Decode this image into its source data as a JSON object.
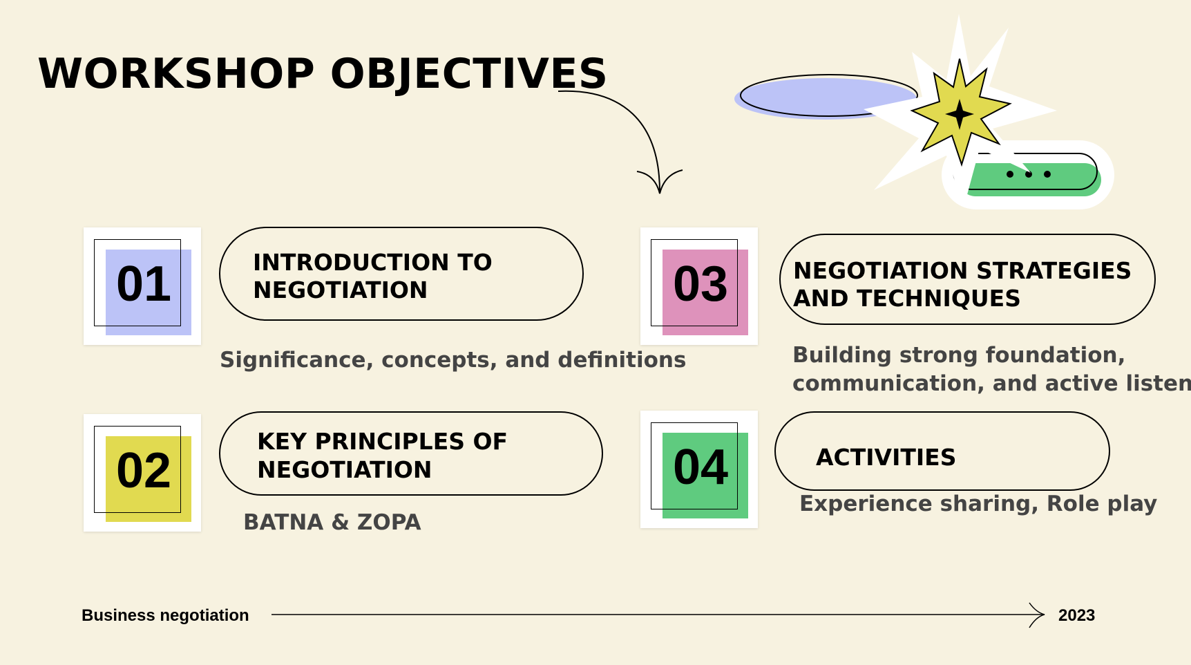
{
  "slide": {
    "title": "WORKSHOP OBJECTIVES",
    "objectives": [
      {
        "number": "01",
        "heading_line1": "INTRODUCTION TO",
        "heading_line2": "NEGOTIATION",
        "description": "Significance, concepts, and definitions",
        "color": "#bcc3f7"
      },
      {
        "number": "02",
        "heading_line1": "KEY PRINCIPLES OF",
        "heading_line2": "NEGOTIATION",
        "description": "BATNA & ZOPA",
        "color": "#e1da50"
      },
      {
        "number": "03",
        "heading_line1": "NEGOTIATION STRATEGIES",
        "heading_line2": "AND TECHNIQUES",
        "description_line1": "Building strong foundation,",
        "description_line2": "communication, and active listening",
        "color": "#de92bb"
      },
      {
        "number": "04",
        "heading_line1": "ACTIVITIES",
        "description": "Experience sharing, Role play",
        "color": "#5fcb7f"
      }
    ],
    "footer": {
      "left": "Business negotiation",
      "right": "2023"
    },
    "decor": {
      "oval_color": "#bcc3f7",
      "burst_color": "#e1da50",
      "pill_color": "#5fcb7f",
      "icons": [
        "curved-arrow-icon",
        "starburst-icon",
        "sparkle-icon",
        "chat-bubble-icon"
      ]
    }
  }
}
